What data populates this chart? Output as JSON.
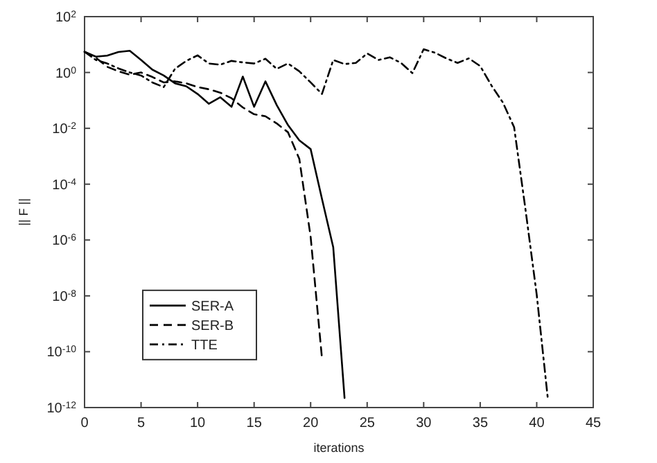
{
  "chart_data": {
    "type": "line",
    "xlabel": "iterations",
    "ylabel": "|| F ||",
    "log": "y",
    "legend": "bottom left",
    "xlim": [
      0,
      45
    ],
    "xticks": [
      0,
      5,
      10,
      15,
      20,
      25,
      30,
      35,
      40,
      45
    ],
    "ylim": [
      1e-12,
      100
    ],
    "yticks": [
      {
        "value": 1e-12,
        "label": "10$^{-12}$"
      },
      {
        "value": 1e-10,
        "label": "10$^{-10}$"
      },
      {
        "value": 1e-08,
        "label": "10$^{-8}$"
      },
      {
        "value": 1e-06,
        "label": "10$^{-6}$"
      },
      {
        "value": 0.0001,
        "label": "10$^{-4}$"
      },
      {
        "value": 0.01,
        "label": "10$^{-2}$"
      },
      {
        "value": 1,
        "label": "10$^{0}$"
      },
      {
        "value": 100,
        "label": "10$^{2}$"
      }
    ],
    "series": [
      {
        "name": "SER-A",
        "color": "#000000",
        "line_style": "solid",
        "x": [
          0,
          1,
          2,
          3,
          4,
          5,
          6,
          7,
          8,
          9,
          10,
          11,
          12,
          13,
          14,
          15,
          16,
          17,
          18,
          19,
          20,
          21,
          22,
          23
        ],
        "values": [
          5.5,
          3.7,
          4,
          5.4,
          6,
          2.8,
          1.26,
          0.78,
          0.41,
          0.32,
          0.17,
          0.076,
          0.13,
          0.059,
          0.71,
          0.059,
          0.48,
          0.068,
          0.013,
          0.0037,
          0.0018,
          3e-05,
          5.5e-07,
          2.2e-12
        ]
      },
      {
        "name": "SER-B",
        "color": "#000000",
        "line_style": "dashed",
        "x": [
          0,
          1,
          2,
          3,
          4,
          5,
          6,
          7,
          8,
          9,
          10,
          11,
          12,
          13,
          14,
          15,
          16,
          17,
          18,
          19,
          20,
          21
        ],
        "values": [
          5.5,
          3.4,
          1.6,
          1.1,
          0.83,
          1,
          0.69,
          0.44,
          0.48,
          0.41,
          0.3,
          0.25,
          0.19,
          0.12,
          0.056,
          0.032,
          0.027,
          0.015,
          0.0072,
          0.0008,
          1.3e-06,
          6e-11
        ]
      },
      {
        "name": "TTE",
        "color": "#000000",
        "line_style": "dashdot",
        "x": [
          0,
          1,
          2,
          3,
          4,
          5,
          6,
          7,
          8,
          9,
          10,
          11,
          12,
          13,
          14,
          15,
          16,
          17,
          18,
          19,
          20,
          21,
          22,
          23,
          24,
          25,
          26,
          27,
          28,
          29,
          30,
          31,
          32,
          33,
          34,
          35,
          36,
          37,
          38,
          39,
          40,
          41
        ],
        "values": [
          5.5,
          2.8,
          2.1,
          1.4,
          1,
          0.78,
          0.44,
          0.3,
          1.35,
          2.6,
          4.1,
          2.1,
          1.9,
          2.6,
          2.3,
          2.1,
          3.1,
          1.35,
          2.1,
          1.1,
          0.44,
          0.17,
          2.8,
          2,
          2.2,
          4.8,
          2.8,
          3.5,
          2.2,
          0.95,
          6.8,
          5.1,
          3.2,
          2.2,
          3.2,
          1.7,
          0.34,
          0.085,
          0.011,
          1.3e-05,
          1.1e-08,
          1.8e-12
        ]
      }
    ]
  }
}
